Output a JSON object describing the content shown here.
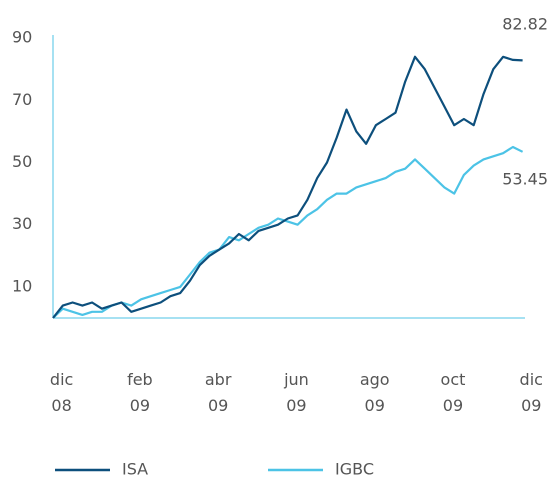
{
  "chart_data": {
    "type": "line",
    "x": [
      -0.22,
      0.03,
      0.28,
      0.53,
      0.78,
      1.03,
      1.28,
      1.53,
      1.78,
      2.03,
      2.28,
      2.53,
      2.78,
      3.03,
      3.28,
      3.53,
      3.78,
      4.03,
      4.28,
      4.53,
      4.78,
      5.03,
      5.28,
      5.53,
      5.78,
      6.03,
      6.28,
      6.53,
      6.78,
      7.03,
      7.28,
      7.53,
      7.78,
      8.03,
      8.28,
      8.53,
      8.78,
      9.03,
      9.28,
      9.53,
      9.78,
      10.03,
      10.28,
      10.53,
      10.78,
      11.03,
      11.28,
      11.53,
      11.78
    ],
    "series": [
      {
        "name": "ISA",
        "color": "#0d4f7c",
        "values": [
          0,
          4,
          5,
          4,
          5,
          3,
          4,
          5,
          2,
          3,
          4,
          5,
          7,
          8,
          12,
          17,
          20,
          22,
          24,
          27,
          25,
          28,
          29,
          30,
          32,
          33,
          38,
          45,
          50,
          58,
          67,
          60,
          56,
          62,
          64,
          66,
          76,
          84,
          80,
          74,
          68,
          62,
          64,
          62,
          72,
          80,
          84,
          83,
          82.82
        ]
      },
      {
        "name": "IGBC",
        "color": "#4cc3e6",
        "values": [
          0,
          3,
          2,
          1,
          2,
          2,
          4,
          5,
          4,
          6,
          7,
          8,
          9,
          10,
          14,
          18,
          21,
          22,
          26,
          25,
          27,
          29,
          30,
          32,
          31,
          30,
          33,
          35,
          38,
          40,
          40,
          42,
          43,
          44,
          45,
          47,
          48,
          51,
          48,
          45,
          42,
          40,
          46,
          49,
          51,
          52,
          53,
          55,
          53.45
        ]
      }
    ],
    "xlim": [
      -0.22,
      12.3
    ],
    "xticks": [
      {
        "value": 0,
        "label": "dic 08"
      },
      {
        "value": 2,
        "label": "feb 09"
      },
      {
        "value": 4,
        "label": "abr 09"
      },
      {
        "value": 6,
        "label": "jun 09"
      },
      {
        "value": 8,
        "label": "ago 09"
      },
      {
        "value": 10,
        "label": "oct 09"
      },
      {
        "value": 12,
        "label": "dic 09"
      }
    ],
    "ylim": [
      0,
      91
    ],
    "yticks": [
      10,
      30,
      50,
      70,
      90
    ]
  }
}
